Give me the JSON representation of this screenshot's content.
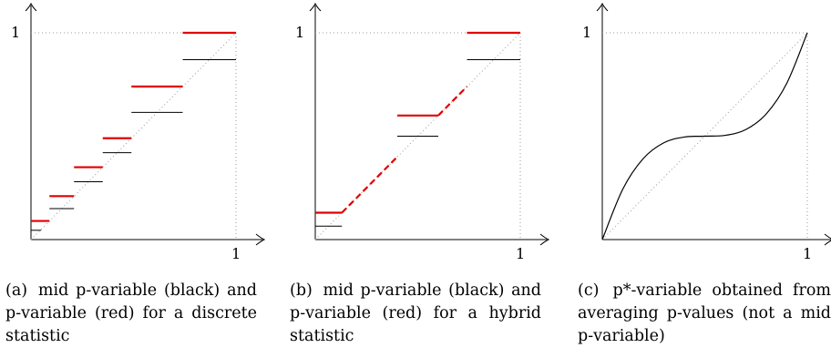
{
  "chart_data": [
    {
      "type": "line",
      "label": "(a)",
      "caption": "mid p-variable (black) and p-variable (red) for a discrete statistic",
      "x_tick_label": "1",
      "y_tick_label": "1",
      "xlim": [
        0,
        1
      ],
      "ylim": [
        0,
        1
      ],
      "diagonal_reference": true,
      "series": [
        {
          "color": "#e00000",
          "style": "step",
          "segments": [
            [
              0.0,
              0.09,
              0.09
            ],
            [
              0.09,
              0.21,
              0.21
            ],
            [
              0.21,
              0.35,
              0.35
            ],
            [
              0.35,
              0.49,
              0.49
            ],
            [
              0.49,
              0.74,
              0.74
            ],
            [
              0.74,
              1.0,
              1.0
            ]
          ]
        },
        {
          "color": "#000000",
          "style": "step",
          "segments": [
            [
              0.0,
              0.05,
              0.045
            ],
            [
              0.09,
              0.21,
              0.15
            ],
            [
              0.21,
              0.35,
              0.28
            ],
            [
              0.35,
              0.49,
              0.42
            ],
            [
              0.49,
              0.74,
              0.615
            ],
            [
              0.74,
              1.0,
              0.87
            ]
          ]
        }
      ]
    },
    {
      "type": "line",
      "label": "(b)",
      "caption": "mid p-variable (black) and p-variable (red) for a hybrid statistic",
      "x_tick_label": "1",
      "y_tick_label": "1",
      "xlim": [
        0,
        1
      ],
      "ylim": [
        0,
        1
      ],
      "diagonal_reference": true,
      "series": [
        {
          "color": "#e00000",
          "style": "dashed",
          "segments": [
            [
              0.0,
              0.13,
              0.13
            ],
            [
              0.13,
              0.4,
              null
            ],
            [
              0.4,
              0.6,
              0.6
            ],
            [
              0.6,
              0.74,
              null
            ],
            [
              0.74,
              1.0,
              1.0
            ]
          ]
        },
        {
          "color": "#000000",
          "style": "step",
          "segments": [
            [
              0.0,
              0.13,
              0.065
            ],
            [
              0.4,
              0.6,
              0.5
            ],
            [
              0.74,
              1.0,
              0.87
            ]
          ]
        }
      ]
    },
    {
      "type": "line",
      "label": "(c)",
      "caption": "p*-variable obtained from averaging p-values (not a mid p-variable)",
      "x_tick_label": "1",
      "y_tick_label": "1",
      "xlim": [
        0,
        1
      ],
      "ylim": [
        0,
        1
      ],
      "diagonal_reference": true,
      "series": [
        {
          "color": "#000000",
          "style": "curve",
          "x": [
            0.0,
            0.1,
            0.2,
            0.3,
            0.4,
            0.5,
            0.6,
            0.7,
            0.8,
            0.9,
            1.0
          ],
          "y": [
            0.0,
            0.244,
            0.392,
            0.468,
            0.496,
            0.5,
            0.504,
            0.532,
            0.608,
            0.756,
            1.0
          ]
        }
      ]
    }
  ]
}
